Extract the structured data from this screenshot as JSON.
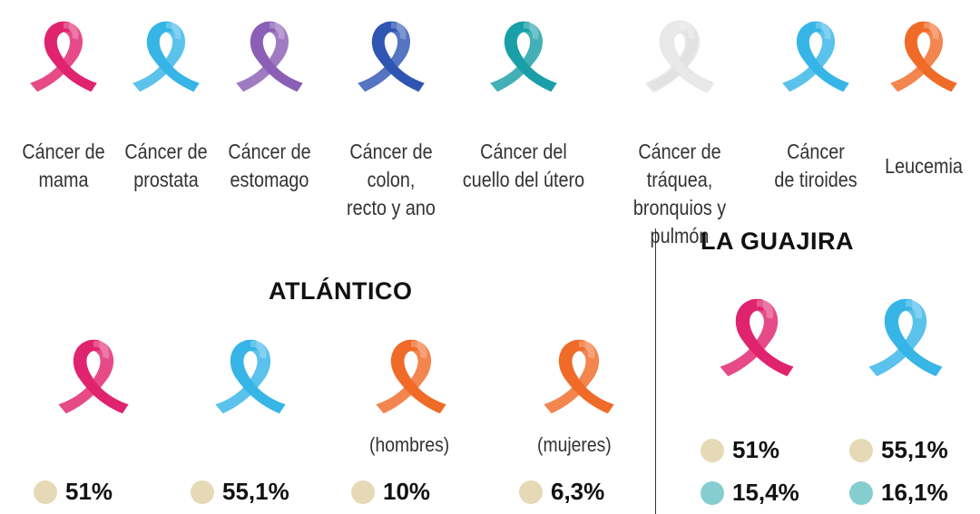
{
  "colors": {
    "pink": "#e0236e",
    "lightblue": "#36b5e6",
    "purple": "#8a5fb5",
    "darkblue": "#2f55b3",
    "teal": "#1a9fa8",
    "white": "#e9e9e9",
    "orange": "#f06a28",
    "dot_beige": "#e6d9b5",
    "dot_teal": "#86cdd0"
  },
  "legend": [
    {
      "line1": "Cáncer de",
      "line2": "mama",
      "color": "pink"
    },
    {
      "line1": "Cáncer de",
      "line2": "prostata",
      "color": "lightblue"
    },
    {
      "line1": "Cáncer de",
      "line2": "estomago",
      "color": "purple"
    },
    {
      "line1": "Cáncer de colon,",
      "line2": "recto y ano",
      "color": "darkblue"
    },
    {
      "line1": "Cáncer del",
      "line2": "cuello del útero",
      "color": "teal"
    },
    {
      "line1": "Cáncer de tráquea,",
      "line2": "bronquios y pulmón",
      "color": "white"
    },
    {
      "line1": "Cáncer",
      "line2": "de tiroides",
      "color": "lightblue"
    },
    {
      "line1": "Leucemia",
      "line2": "",
      "color": "orange"
    }
  ],
  "atlantico": {
    "title": "ATLÁNTICO",
    "items": [
      {
        "ribbon": "pink",
        "note": "",
        "value": "51%",
        "dot": "dot_beige"
      },
      {
        "ribbon": "lightblue",
        "note": "",
        "value": "55,1%",
        "dot": "dot_beige"
      },
      {
        "ribbon": "orange",
        "note": "(hombres)",
        "value": "10%",
        "dot": "dot_beige"
      },
      {
        "ribbon": "orange",
        "note": "(mujeres)",
        "value": "6,3%",
        "dot": "dot_beige"
      }
    ]
  },
  "guajira": {
    "title": "LA GUAJIRA",
    "items": [
      {
        "ribbon": "pink",
        "value1": "51%",
        "dot1": "dot_beige",
        "value2": "15,4%",
        "dot2": "dot_teal"
      },
      {
        "ribbon": "lightblue",
        "value1": "55,1%",
        "dot1": "dot_beige",
        "value2": "16,1%",
        "dot2": "dot_teal"
      }
    ]
  }
}
